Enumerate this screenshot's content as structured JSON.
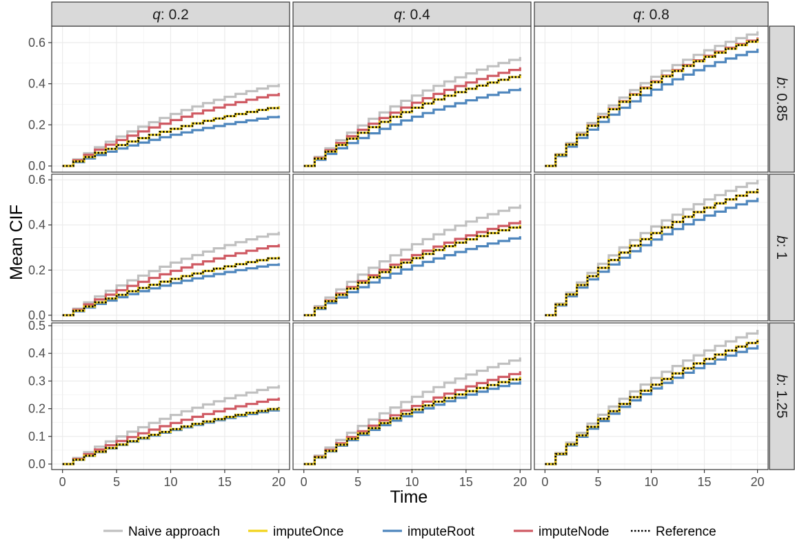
{
  "chart_data": {
    "type": "line",
    "xlabel": "Time",
    "ylabel": "Mean CIF",
    "xlim": [
      -1,
      21
    ],
    "x_ticks": [
      "0",
      "5",
      "10",
      "15",
      "20"
    ],
    "x_tick_values": [
      0,
      5,
      10,
      15,
      20
    ],
    "step": true,
    "grid": true,
    "legend_position": "bottom",
    "columns": [
      {
        "var": "q",
        "value": "0.2"
      },
      {
        "var": "q",
        "value": "0.4"
      },
      {
        "var": "q",
        "value": "0.8"
      }
    ],
    "rows": [
      {
        "var": "b",
        "value": "0.85",
        "ylim": [
          -0.03,
          0.68
        ],
        "y_ticks": [
          "0.0",
          "0.2",
          "0.4",
          "0.6"
        ],
        "y_tick_values": [
          0,
          0.2,
          0.4,
          0.6
        ]
      },
      {
        "var": "b",
        "value": "1",
        "ylim": [
          -0.025,
          0.625
        ],
        "y_ticks": [
          "0.0",
          "0.2",
          "0.4",
          "0.6"
        ],
        "y_tick_values": [
          0,
          0.2,
          0.4,
          0.6
        ]
      },
      {
        "var": "b",
        "value": "1.25",
        "ylim": [
          -0.02,
          0.51
        ],
        "y_ticks": [
          "0.0",
          "0.1",
          "0.2",
          "0.3",
          "0.4",
          "0.5"
        ],
        "y_tick_values": [
          0,
          0.1,
          0.2,
          0.3,
          0.4,
          0.5
        ]
      }
    ],
    "series": [
      {
        "key": "naive",
        "name": "Naive approach",
        "color": "#c0c0c0",
        "dash": "solid"
      },
      {
        "key": "once",
        "name": "imputeOnce",
        "color": "#f2d31b",
        "dash": "solid"
      },
      {
        "key": "root",
        "name": "imputeRoot",
        "color": "#4e86bd",
        "dash": "solid"
      },
      {
        "key": "node",
        "name": "imputeNode",
        "color": "#cf5a63",
        "dash": "solid"
      },
      {
        "key": "ref",
        "name": "Reference",
        "color": "#000000",
        "dash": "dotted"
      }
    ],
    "panels": [
      {
        "row": 0,
        "col": 0,
        "end": {
          "naive": 0.4,
          "once": 0.29,
          "root": 0.245,
          "node": 0.355,
          "ref": 0.29
        }
      },
      {
        "row": 0,
        "col": 1,
        "end": {
          "naive": 0.53,
          "once": 0.445,
          "root": 0.38,
          "node": 0.48,
          "ref": 0.445
        }
      },
      {
        "row": 0,
        "col": 2,
        "end": {
          "naive": 0.655,
          "once": 0.62,
          "root": 0.57,
          "node": 0.625,
          "ref": 0.62
        }
      },
      {
        "row": 1,
        "col": 0,
        "end": {
          "naive": 0.37,
          "once": 0.26,
          "root": 0.23,
          "node": 0.315,
          "ref": 0.26
        }
      },
      {
        "row": 1,
        "col": 1,
        "end": {
          "naive": 0.49,
          "once": 0.4,
          "root": 0.35,
          "node": 0.42,
          "ref": 0.4
        }
      },
      {
        "row": 1,
        "col": 2,
        "end": {
          "naive": 0.6,
          "once": 0.56,
          "root": 0.52,
          "node": 0.56,
          "ref": 0.56
        }
      },
      {
        "row": 2,
        "col": 0,
        "end": {
          "naive": 0.285,
          "once": 0.205,
          "root": 0.2,
          "node": 0.24,
          "ref": 0.205
        }
      },
      {
        "row": 2,
        "col": 1,
        "end": {
          "naive": 0.385,
          "once": 0.315,
          "root": 0.3,
          "node": 0.335,
          "ref": 0.315
        }
      },
      {
        "row": 2,
        "col": 2,
        "end": {
          "naive": 0.485,
          "once": 0.45,
          "root": 0.43,
          "node": 0.45,
          "ref": 0.45
        }
      }
    ]
  }
}
